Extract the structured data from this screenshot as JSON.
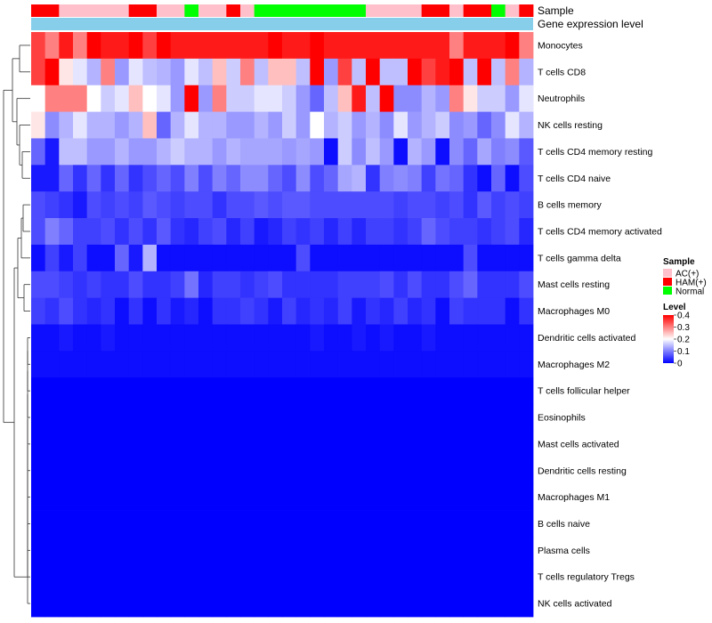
{
  "chart_data": {
    "type": "heatmap",
    "title": "",
    "rows": [
      "Monocytes",
      "T cells CD8",
      "Neutrophils",
      "NK cells resting",
      "T cells CD4 memory resting",
      "T cells CD4 naive",
      "B cells memory",
      "T cells CD4 memory activated",
      "T cells gamma delta",
      "Mast cells resting",
      "Macrophages M0",
      "Dendritic cells activated",
      "Macrophages M2",
      "T cells follicular helper",
      "Eosinophils",
      "Mast cells activated",
      "Dendritic cells resting",
      "Macrophages M1",
      "B cells naive",
      "Plasma cells",
      "T cells regulatory  Tregs",
      "NK cells activated"
    ],
    "column_annotations": {
      "sample_label": "Sample",
      "expression_label": "Gene expression level",
      "sample": [
        "HAM(+)",
        "HAM(+)",
        "AC(+)",
        "AC(+)",
        "AC(+)",
        "AC(+)",
        "AC(+)",
        "HAM(+)",
        "HAM(+)",
        "AC(+)",
        "AC(+)",
        "Normal",
        "AC(+)",
        "AC(+)",
        "HAM(+)",
        "AC(+)",
        "Normal",
        "Normal",
        "Normal",
        "Normal",
        "Normal",
        "Normal",
        "Normal",
        "Normal",
        "AC(+)",
        "AC(+)",
        "AC(+)",
        "AC(+)",
        "HAM(+)",
        "HAM(+)",
        "AC(+)",
        "HAM(+)",
        "HAM(+)",
        "Normal",
        "AC(+)",
        "HAM(+)"
      ]
    },
    "values": [
      [
        0.35,
        0.3,
        0.38,
        0.3,
        0.4,
        0.38,
        0.38,
        0.42,
        0.35,
        0.42,
        0.38,
        0.38,
        0.38,
        0.38,
        0.38,
        0.38,
        0.38,
        0.4,
        0.38,
        0.38,
        0.42,
        0.38,
        0.38,
        0.38,
        0.38,
        0.38,
        0.38,
        0.38,
        0.38,
        0.38,
        0.3,
        0.38,
        0.38,
        0.38,
        0.4,
        0.3
      ],
      [
        0.35,
        0.42,
        0.22,
        0.18,
        0.14,
        0.3,
        0.12,
        0.18,
        0.15,
        0.14,
        0.12,
        0.18,
        0.15,
        0.25,
        0.16,
        0.3,
        0.15,
        0.25,
        0.25,
        0.15,
        0.42,
        0.12,
        0.35,
        0.15,
        0.42,
        0.15,
        0.15,
        0.42,
        0.35,
        0.38,
        0.42,
        0.15,
        0.42,
        0.15,
        0.3,
        0.14
      ],
      [
        0.2,
        0.3,
        0.3,
        0.3,
        0.2,
        0.16,
        0.18,
        0.25,
        0.2,
        0.18,
        0.12,
        0.45,
        0.12,
        0.3,
        0.16,
        0.16,
        0.18,
        0.18,
        0.16,
        0.12,
        0.08,
        0.15,
        0.25,
        0.38,
        0.15,
        0.42,
        0.11,
        0.11,
        0.14,
        0.12,
        0.3,
        0.22,
        0.16,
        0.16,
        0.12,
        0.18
      ],
      [
        0.22,
        0.11,
        0.14,
        0.18,
        0.14,
        0.14,
        0.12,
        0.14,
        0.25,
        0.08,
        0.14,
        0.18,
        0.14,
        0.14,
        0.12,
        0.12,
        0.14,
        0.12,
        0.16,
        0.12,
        0.2,
        0.14,
        0.16,
        0.12,
        0.14,
        0.11,
        0.18,
        0.12,
        0.14,
        0.16,
        0.11,
        0.12,
        0.08,
        0.11,
        0.18,
        0.14
      ],
      [
        0.08,
        0.02,
        0.15,
        0.15,
        0.12,
        0.12,
        0.14,
        0.12,
        0.12,
        0.14,
        0.16,
        0.14,
        0.14,
        0.12,
        0.14,
        0.13,
        0.13,
        0.13,
        0.12,
        0.13,
        0.12,
        0.01,
        0.16,
        0.11,
        0.15,
        0.12,
        0.01,
        0.14,
        0.12,
        0.01,
        0.11,
        0.08,
        0.13,
        0.1,
        0.11,
        0.07
      ],
      [
        0.02,
        0.02,
        0.08,
        0.04,
        0.08,
        0.04,
        0.08,
        0.04,
        0.06,
        0.08,
        0.06,
        0.1,
        0.06,
        0.1,
        0.08,
        0.11,
        0.11,
        0.08,
        0.06,
        0.11,
        0.06,
        0.08,
        0.13,
        0.14,
        0.04,
        0.1,
        0.11,
        0.1,
        0.05,
        0.09,
        0.08,
        0.04,
        0.01,
        0.08,
        0.01,
        0.06
      ],
      [
        0.06,
        0.05,
        0.04,
        0.02,
        0.06,
        0.05,
        0.06,
        0.05,
        0.07,
        0.06,
        0.05,
        0.06,
        0.06,
        0.04,
        0.06,
        0.06,
        0.07,
        0.06,
        0.07,
        0.07,
        0.06,
        0.06,
        0.06,
        0.06,
        0.06,
        0.06,
        0.05,
        0.06,
        0.06,
        0.05,
        0.06,
        0.04,
        0.07,
        0.05,
        0.06,
        0.05
      ],
      [
        0.06,
        0.1,
        0.08,
        0.05,
        0.05,
        0.06,
        0.04,
        0.06,
        0.04,
        0.07,
        0.04,
        0.03,
        0.05,
        0.06,
        0.03,
        0.05,
        0.02,
        0.03,
        0.05,
        0.04,
        0.05,
        0.03,
        0.05,
        0.03,
        0.05,
        0.05,
        0.04,
        0.05,
        0.08,
        0.06,
        0.05,
        0.05,
        0.04,
        0.05,
        0.06,
        0.03
      ],
      [
        0.01,
        0.05,
        0.02,
        0.05,
        0.01,
        0.01,
        0.08,
        0.02,
        0.14,
        0.01,
        0.01,
        0.01,
        0.01,
        0.01,
        0.01,
        0.01,
        0.01,
        0.01,
        0.01,
        0.06,
        0.01,
        0.01,
        0.01,
        0.01,
        0.01,
        0.01,
        0.01,
        0.01,
        0.01,
        0.01,
        0.01,
        0.06,
        0.01,
        0.01,
        0.01,
        0.01
      ],
      [
        0.06,
        0.06,
        0.05,
        0.04,
        0.05,
        0.04,
        0.04,
        0.06,
        0.04,
        0.04,
        0.05,
        0.09,
        0.03,
        0.05,
        0.05,
        0.04,
        0.05,
        0.06,
        0.04,
        0.04,
        0.04,
        0.04,
        0.05,
        0.05,
        0.05,
        0.06,
        0.04,
        0.06,
        0.04,
        0.04,
        0.06,
        0.08,
        0.04,
        0.04,
        0.04,
        0.06
      ],
      [
        0.05,
        0.04,
        0.06,
        0.04,
        0.03,
        0.04,
        0.01,
        0.04,
        0.01,
        0.04,
        0.02,
        0.03,
        0.01,
        0.04,
        0.04,
        0.05,
        0.04,
        0.02,
        0.05,
        0.03,
        0.04,
        0.03,
        0.05,
        0.02,
        0.04,
        0.03,
        0.05,
        0.03,
        0.04,
        0.01,
        0.05,
        0.04,
        0.04,
        0.04,
        0.01,
        0.04
      ],
      [
        0.01,
        0.01,
        0.02,
        0.01,
        0.01,
        0.02,
        0.01,
        0.01,
        0.01,
        0.01,
        0.01,
        0.01,
        0.01,
        0.01,
        0.01,
        0.01,
        0.01,
        0.01,
        0.01,
        0.01,
        0.02,
        0.01,
        0.01,
        0.02,
        0.01,
        0.02,
        0.01,
        0.01,
        0.02,
        0.01,
        0.01,
        0.01,
        0.01,
        0.01,
        0.01,
        0.01
      ],
      [
        0.01,
        0.01,
        0.01,
        0.01,
        0.01,
        0.01,
        0.01,
        0.01,
        0.01,
        0.01,
        0.01,
        0.01,
        0.01,
        0.01,
        0.01,
        0.01,
        0.01,
        0.01,
        0.01,
        0.01,
        0.01,
        0.01,
        0.01,
        0.01,
        0.01,
        0.01,
        0.01,
        0.01,
        0.01,
        0.01,
        0.01,
        0.01,
        0.01,
        0.01,
        0.01,
        0.01
      ],
      [
        0,
        0,
        0,
        0,
        0,
        0,
        0,
        0,
        0,
        0,
        0,
        0,
        0,
        0,
        0,
        0,
        0,
        0,
        0,
        0,
        0,
        0,
        0,
        0,
        0,
        0,
        0,
        0,
        0,
        0,
        0,
        0,
        0,
        0,
        0,
        0
      ],
      [
        0,
        0,
        0,
        0,
        0,
        0,
        0,
        0,
        0,
        0,
        0,
        0,
        0,
        0,
        0,
        0,
        0,
        0,
        0,
        0,
        0,
        0,
        0,
        0,
        0,
        0,
        0,
        0,
        0,
        0,
        0,
        0,
        0,
        0,
        0,
        0
      ],
      [
        0,
        0,
        0,
        0,
        0,
        0,
        0,
        0,
        0,
        0,
        0,
        0,
        0,
        0,
        0,
        0,
        0,
        0,
        0,
        0,
        0,
        0,
        0,
        0,
        0,
        0,
        0,
        0,
        0,
        0,
        0,
        0,
        0,
        0,
        0,
        0
      ],
      [
        0,
        0,
        0,
        0,
        0,
        0,
        0,
        0,
        0,
        0,
        0,
        0,
        0,
        0,
        0,
        0,
        0,
        0,
        0,
        0,
        0,
        0,
        0,
        0,
        0,
        0,
        0,
        0,
        0,
        0,
        0,
        0,
        0,
        0,
        0,
        0
      ],
      [
        0,
        0,
        0,
        0,
        0,
        0,
        0,
        0,
        0,
        0,
        0,
        0,
        0,
        0,
        0,
        0,
        0,
        0,
        0,
        0,
        0,
        0,
        0,
        0,
        0,
        0,
        0,
        0,
        0,
        0,
        0,
        0,
        0,
        0,
        0,
        0
      ],
      [
        0,
        0,
        0,
        0,
        0,
        0,
        0,
        0,
        0,
        0,
        0,
        0,
        0,
        0,
        0,
        0,
        0,
        0,
        0,
        0,
        0,
        0,
        0,
        0,
        0,
        0,
        0,
        0,
        0,
        0,
        0,
        0,
        0,
        0,
        0,
        0
      ],
      [
        0,
        0,
        0,
        0,
        0,
        0,
        0,
        0,
        0,
        0,
        0,
        0,
        0,
        0,
        0,
        0,
        0,
        0,
        0,
        0,
        0,
        0,
        0,
        0,
        0,
        0,
        0,
        0,
        0,
        0,
        0,
        0,
        0,
        0,
        0,
        0
      ],
      [
        0,
        0,
        0,
        0,
        0,
        0,
        0,
        0,
        0,
        0,
        0,
        0,
        0,
        0,
        0,
        0,
        0,
        0,
        0,
        0,
        0,
        0,
        0,
        0,
        0,
        0,
        0,
        0,
        0,
        0,
        0,
        0,
        0,
        0,
        0,
        0
      ],
      [
        0,
        0,
        0,
        0,
        0,
        0,
        0,
        0,
        0,
        0,
        0,
        0,
        0,
        0,
        0,
        0,
        0,
        0,
        0,
        0,
        0,
        0,
        0,
        0,
        0,
        0,
        0,
        0,
        0,
        0,
        0,
        0,
        0,
        0,
        0,
        0
      ]
    ],
    "color_scale": {
      "min": 0,
      "max": 0.4,
      "low": "#0000ff",
      "mid": "#ffffff",
      "high": "#ff0000",
      "midpoint": 0.2
    },
    "legend": {
      "position": "right",
      "sample_title": "Sample",
      "sample_items": [
        {
          "label": "AC(+)",
          "color": "#ffc0cb"
        },
        {
          "label": "HAM(+)",
          "color": "#ff0000"
        },
        {
          "label": "Normal",
          "color": "#00ff00"
        }
      ],
      "level_title": "Level",
      "level_ticks": [
        0.4,
        0.3,
        0.2,
        0.1,
        0
      ],
      "level_tick_labels": [
        "0.4",
        "0.3",
        "0.2",
        "0.1",
        "0"
      ]
    },
    "expression_bar_color": "#87ceeb",
    "row_dendrogram": true
  }
}
